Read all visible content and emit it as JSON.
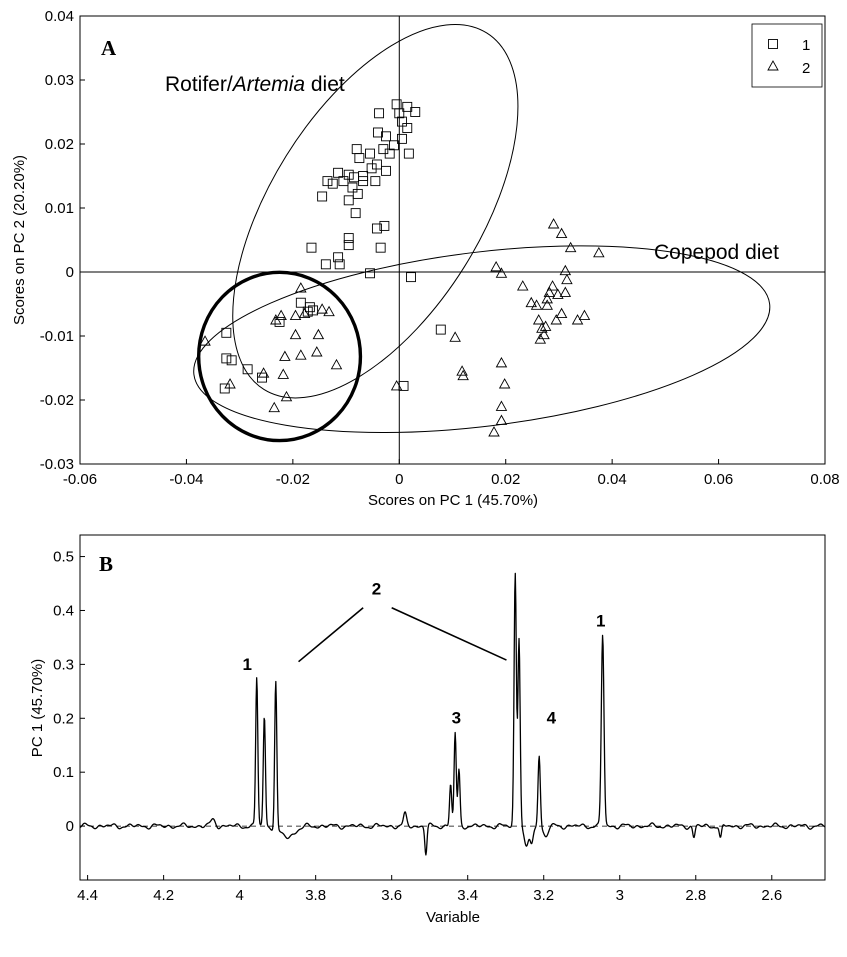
{
  "chart_data": [
    {
      "type": "scatter",
      "panel_label": "A",
      "xlabel": "Scores on PC 1 (45.70%)",
      "ylabel": "Scores on PC 2 (20.20%)",
      "xlim": [
        -0.06,
        0.08
      ],
      "ylim": [
        -0.03,
        0.04
      ],
      "xticks": [
        "-0.06",
        "-0.04",
        "-0.02",
        "0",
        "0.02",
        "0.04",
        "0.06",
        "0.08"
      ],
      "yticks": [
        "-0.03",
        "-0.02",
        "-0.01",
        "0",
        "0.01",
        "0.02",
        "0.03",
        "0.04"
      ],
      "legend": {
        "position": "top-right",
        "entries": [
          "1",
          "2"
        ]
      },
      "annotations": [
        {
          "text_plain": "Rotifer/",
          "text_italic": "Artemia",
          "text_after": " diet"
        },
        {
          "text": "Copepod diet"
        }
      ],
      "ellipses": [
        {
          "cx": -0.0045,
          "cy": 0.0095,
          "rx": 0.0395,
          "ry": 0.0164,
          "angle_deg": 58
        },
        {
          "cx": 0.0155,
          "cy": -0.0105,
          "rx": 0.0545,
          "ry": 0.0136,
          "angle_deg": 7
        }
      ],
      "circle": {
        "cx": -0.0225,
        "cy": -0.0132,
        "r": 0.0152
      },
      "series": [
        {
          "name": "1",
          "marker": "square",
          "points": [
            [
              -0.0005,
              0.0262
            ],
            [
              0.0,
              0.0248
            ],
            [
              0.0015,
              0.0258
            ],
            [
              0.003,
              0.025
            ],
            [
              0.0005,
              0.0235
            ],
            [
              0.0015,
              0.0225
            ],
            [
              -0.0038,
              0.0248
            ],
            [
              -0.004,
              0.0218
            ],
            [
              -0.0025,
              0.0212
            ],
            [
              -0.003,
              0.0192
            ],
            [
              -0.001,
              0.0198
            ],
            [
              0.0005,
              0.0208
            ],
            [
              -0.008,
              0.0192
            ],
            [
              -0.0075,
              0.0178
            ],
            [
              -0.0055,
              0.0185
            ],
            [
              -0.0052,
              0.0162
            ],
            [
              -0.0042,
              0.0168
            ],
            [
              -0.0018,
              0.0185
            ],
            [
              0.0018,
              0.0185
            ],
            [
              -0.0025,
              0.0158
            ],
            [
              -0.0068,
              0.015
            ],
            [
              -0.0085,
              0.0148
            ],
            [
              -0.0095,
              0.0152
            ],
            [
              -0.0115,
              0.0155
            ],
            [
              -0.0105,
              0.0142
            ],
            [
              -0.0125,
              0.0138
            ],
            [
              -0.0135,
              0.0142
            ],
            [
              -0.0088,
              0.0132
            ],
            [
              -0.0068,
              0.0142
            ],
            [
              -0.0045,
              0.0142
            ],
            [
              -0.0145,
              0.0118
            ],
            [
              -0.0095,
              0.0112
            ],
            [
              -0.0078,
              0.0122
            ],
            [
              -0.0082,
              0.0092
            ],
            [
              -0.0042,
              0.0068
            ],
            [
              -0.0028,
              0.0072
            ],
            [
              -0.0095,
              0.0053
            ],
            [
              -0.0095,
              0.0042
            ],
            [
              -0.0035,
              0.0038
            ],
            [
              -0.0165,
              0.0038
            ],
            [
              -0.0115,
              0.0023
            ],
            [
              -0.0138,
              0.0012
            ],
            [
              -0.0112,
              0.0012
            ],
            [
              -0.0055,
              -0.0002
            ],
            [
              0.0022,
              -0.0008
            ],
            [
              0.0008,
              -0.0178
            ],
            [
              0.0078,
              -0.009
            ],
            [
              -0.0172,
              -0.0062
            ],
            [
              -0.0185,
              -0.0048
            ],
            [
              -0.0225,
              -0.0078
            ],
            [
              -0.0325,
              -0.0095
            ],
            [
              -0.0325,
              -0.0135
            ],
            [
              -0.0315,
              -0.0138
            ],
            [
              -0.0285,
              -0.0152
            ],
            [
              -0.0328,
              -0.0182
            ],
            [
              -0.0258,
              -0.0165
            ],
            [
              -0.0162,
              -0.006
            ],
            [
              -0.0168,
              -0.0055
            ]
          ]
        },
        {
          "name": "2",
          "marker": "triangle",
          "points": [
            [
              -0.0365,
              -0.0108
            ],
            [
              -0.0318,
              -0.0175
            ],
            [
              -0.0255,
              -0.0158
            ],
            [
              -0.0232,
              -0.0075
            ],
            [
              -0.0222,
              -0.0068
            ],
            [
              -0.0195,
              -0.0068
            ],
            [
              -0.0185,
              -0.0025
            ],
            [
              -0.0178,
              -0.0065
            ],
            [
              -0.0152,
              -0.0098
            ],
            [
              -0.0145,
              -0.0058
            ],
            [
              -0.0132,
              -0.0062
            ],
            [
              -0.0155,
              -0.0125
            ],
            [
              -0.0185,
              -0.013
            ],
            [
              -0.0215,
              -0.0132
            ],
            [
              -0.0195,
              -0.0098
            ],
            [
              -0.0218,
              -0.016
            ],
            [
              -0.0212,
              -0.0195
            ],
            [
              -0.0235,
              -0.0212
            ],
            [
              -0.0118,
              -0.0145
            ],
            [
              -0.0005,
              -0.0178
            ],
            [
              0.0105,
              -0.0102
            ],
            [
              0.0118,
              -0.0155
            ],
            [
              0.012,
              -0.0162
            ],
            [
              0.0182,
              0.0008
            ],
            [
              0.0192,
              -0.0002
            ],
            [
              0.0192,
              -0.0142
            ],
            [
              0.0198,
              -0.0175
            ],
            [
              0.0192,
              -0.021
            ],
            [
              0.0192,
              -0.0232
            ],
            [
              0.0178,
              -0.025
            ],
            [
              0.0232,
              -0.0022
            ],
            [
              0.0248,
              -0.0048
            ],
            [
              0.0262,
              -0.0075
            ],
            [
              0.0265,
              -0.0105
            ],
            [
              0.0272,
              -0.0098
            ],
            [
              0.0275,
              -0.0085
            ],
            [
              0.0278,
              -0.0052
            ],
            [
              0.0282,
              -0.0032
            ],
            [
              0.0288,
              -0.0022
            ],
            [
              0.029,
              0.0075
            ],
            [
              0.0305,
              0.006
            ],
            [
              0.0312,
              0.0002
            ],
            [
              0.0315,
              -0.0012
            ],
            [
              0.0312,
              -0.0032
            ],
            [
              0.0305,
              -0.0065
            ],
            [
              0.0295,
              -0.0075
            ],
            [
              0.0322,
              0.0038
            ],
            [
              0.0335,
              -0.0075
            ],
            [
              0.0348,
              -0.0068
            ],
            [
              0.0375,
              0.003
            ],
            [
              0.0298,
              -0.0035
            ],
            [
              0.0268,
              -0.0088
            ],
            [
              0.0278,
              -0.0042
            ],
            [
              0.0258,
              -0.0052
            ]
          ]
        }
      ]
    },
    {
      "type": "line",
      "panel_label": "B",
      "xlabel": "Variable",
      "ylabel": "PC 1 (45.70%)",
      "xlim": [
        4.42,
        2.46
      ],
      "ylim": [
        -0.1,
        0.54
      ],
      "xticks": [
        "4.4",
        "4.2",
        "4",
        "3.8",
        "3.6",
        "3.4",
        "3.2",
        "3",
        "2.8",
        "2.6"
      ],
      "yticks": [
        "0",
        "0.1",
        "0.2",
        "0.3",
        "0.4",
        "0.5"
      ],
      "baseline_dashed": 0,
      "peak_labels": [
        {
          "text": "1",
          "x": 3.98,
          "y": 0.29
        },
        {
          "text": "2",
          "x": 3.64,
          "y": 0.43
        },
        {
          "text": "3",
          "x": 3.43,
          "y": 0.19
        },
        {
          "text": "4",
          "x": 3.18,
          "y": 0.19
        },
        {
          "text": "1",
          "x": 3.05,
          "y": 0.37
        }
      ],
      "connector_lines": [
        {
          "from": [
            3.675,
            0.405
          ],
          "to": [
            3.845,
            0.305
          ]
        },
        {
          "from": [
            3.6,
            0.405
          ],
          "to": [
            3.298,
            0.308
          ]
        }
      ],
      "peaks": [
        {
          "x": 3.955,
          "h": 0.276,
          "w": 0.0028
        },
        {
          "x": 3.935,
          "h": 0.205,
          "w": 0.0028
        },
        {
          "x": 3.905,
          "h": 0.274,
          "w": 0.0028
        },
        {
          "x": 3.875,
          "h": -0.02,
          "w": 0.02
        },
        {
          "x": 3.51,
          "h": -0.052,
          "w": 0.0028
        },
        {
          "x": 3.565,
          "h": 0.022,
          "w": 0.004
        },
        {
          "x": 3.445,
          "h": 0.078,
          "w": 0.0028
        },
        {
          "x": 3.433,
          "h": 0.172,
          "w": 0.0028
        },
        {
          "x": 3.423,
          "h": 0.102,
          "w": 0.0028
        },
        {
          "x": 3.275,
          "h": 0.468,
          "w": 0.003
        },
        {
          "x": 3.265,
          "h": 0.35,
          "w": 0.003
        },
        {
          "x": 3.245,
          "h": -0.04,
          "w": 0.006
        },
        {
          "x": 3.232,
          "h": -0.03,
          "w": 0.004
        },
        {
          "x": 3.212,
          "h": 0.132,
          "w": 0.003
        },
        {
          "x": 3.195,
          "h": -0.02,
          "w": 0.006
        },
        {
          "x": 3.045,
          "h": 0.355,
          "w": 0.0035
        },
        {
          "x": 2.805,
          "h": -0.022,
          "w": 0.003
        },
        {
          "x": 2.735,
          "h": -0.025,
          "w": 0.003
        },
        {
          "x": 4.07,
          "h": 0.012,
          "w": 0.006
        }
      ]
    }
  ],
  "colors": {
    "line": "#000000",
    "background": "#ffffff"
  }
}
